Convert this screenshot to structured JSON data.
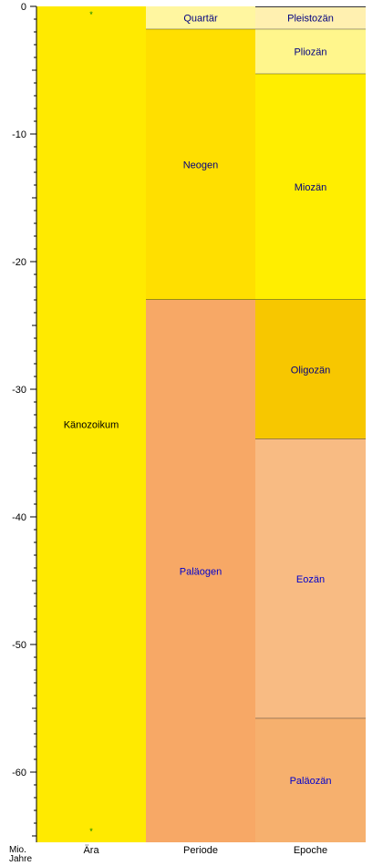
{
  "chart_data": {
    "type": "table",
    "y_unit": [
      "Mio.",
      "Jahre"
    ],
    "ylim": [
      -65.5,
      0
    ],
    "yticks": [
      0,
      -10,
      -20,
      -30,
      -40,
      -50,
      -60
    ],
    "ytick_labels": [
      "0",
      "-10",
      "-20",
      "-30",
      "-40",
      "-50",
      "-60"
    ],
    "columns": [
      "Ära",
      "Periode",
      "Epoche"
    ],
    "eras": [
      {
        "name": "Känozoikum",
        "start": 65.5,
        "end": 0,
        "color": "#FFEA00",
        "text_color": "#000000"
      }
    ],
    "periods": [
      {
        "name": "Quartär",
        "start": 1.8,
        "end": 0,
        "color": "#FFF6A0",
        "text_color": "#000080"
      },
      {
        "name": "Neogen",
        "start": 23.0,
        "end": 1.8,
        "color": "#FFDF00",
        "text_color": "#000080"
      },
      {
        "name": "Paläogen",
        "start": 65.5,
        "end": 23.0,
        "color": "#F7A866",
        "text_color": "#0000CC"
      }
    ],
    "epochs": [
      {
        "name": "Pleistozän",
        "start": 1.8,
        "end": 0,
        "color": "#FFF0B0",
        "text_color": "#000080"
      },
      {
        "name": "Pliozän",
        "start": 5.3,
        "end": 1.8,
        "color": "#FFF68C",
        "text_color": "#000080"
      },
      {
        "name": "Miozän",
        "start": 23.0,
        "end": 5.3,
        "color": "#FFEE00",
        "text_color": "#000080"
      },
      {
        "name": "Oligozän",
        "start": 33.9,
        "end": 23.0,
        "color": "#F7C700",
        "text_color": "#000080"
      },
      {
        "name": "Eozän",
        "start": 55.8,
        "end": 33.9,
        "color": "#F8BB83",
        "text_color": "#0000CC"
      },
      {
        "name": "Paläozän",
        "start": 65.5,
        "end": 55.8,
        "color": "#F6B06E",
        "text_color": "#0000CC"
      }
    ],
    "markers": [
      {
        "column": "Ära",
        "at": 0.5,
        "symbol": "*",
        "color": "#008000"
      },
      {
        "column": "Ära",
        "at": 64.5,
        "symbol": "*",
        "color": "#008000"
      }
    ]
  }
}
